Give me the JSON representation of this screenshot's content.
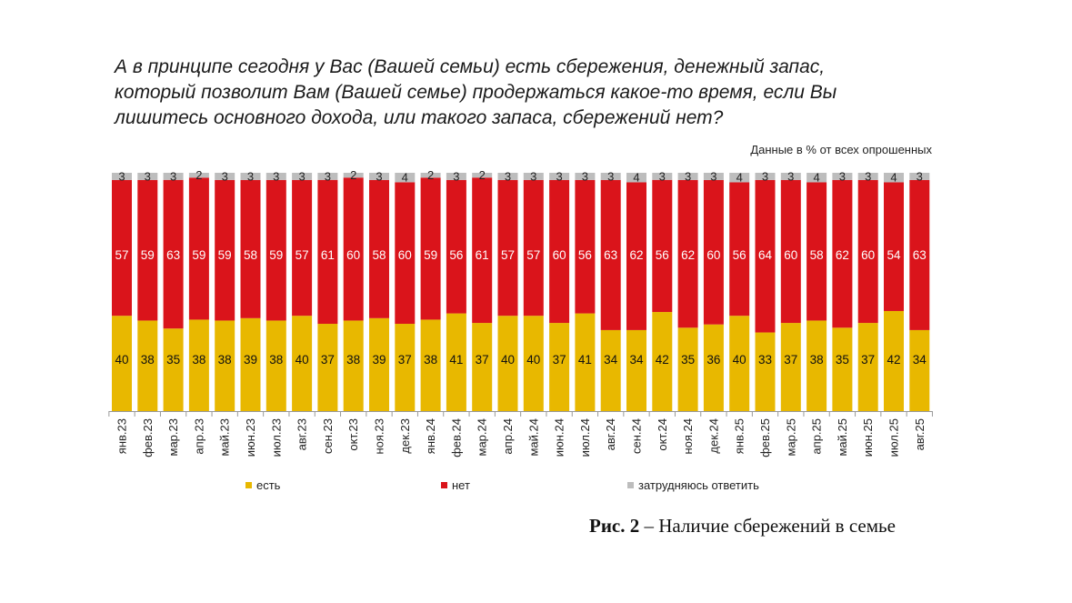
{
  "title_lines": [
    "А в принципе сегодня у Вас (Вашей семьи) есть сбережения, денежный запас,",
    "который позволит Вам (Вашей семье) продержаться какое-то время, если Вы",
    "лишитесь основного дохода, или такого запаса, сбережений нет?"
  ],
  "subtitle": "Данные в % от всех опрошенных",
  "caption": {
    "label": "Рис. 2",
    "text": " – Наличие сбережений в семье"
  },
  "chart_data": {
    "type": "bar",
    "stacked": true,
    "normalized_percent": true,
    "categories": [
      "янв.23",
      "фев.23",
      "мар.23",
      "апр.23",
      "май.23",
      "июн.23",
      "июл.23",
      "авг.23",
      "сен.23",
      "окт.23",
      "ноя.23",
      "дек.23",
      "янв.24",
      "фев.24",
      "мар.24",
      "апр.24",
      "май.24",
      "июн.24",
      "июл.24",
      "авг.24",
      "сен.24",
      "окт.24",
      "ноя.24",
      "дек.24",
      "янв.25",
      "фев.25",
      "мар.25",
      "апр.25",
      "май.25",
      "июн.25",
      "июл.25",
      "авг.25"
    ],
    "series": [
      {
        "name": "есть",
        "color": "#E8B800",
        "values": [
          40,
          38,
          35,
          38,
          38,
          39,
          38,
          40,
          37,
          38,
          39,
          37,
          38,
          41,
          37,
          40,
          40,
          37,
          41,
          34,
          34,
          42,
          35,
          36,
          40,
          33,
          37,
          38,
          35,
          37,
          42,
          34
        ]
      },
      {
        "name": "нет",
        "color": "#DA141B",
        "values": [
          57,
          59,
          63,
          59,
          59,
          58,
          59,
          57,
          61,
          60,
          58,
          60,
          59,
          56,
          61,
          57,
          57,
          60,
          56,
          63,
          62,
          56,
          62,
          60,
          56,
          64,
          60,
          58,
          62,
          60,
          54,
          63
        ]
      },
      {
        "name": "затрудняюсь ответить",
        "color": "#BDBDBD",
        "values": [
          3,
          3,
          3,
          2,
          3,
          3,
          3,
          3,
          3,
          2,
          3,
          4,
          2,
          3,
          2,
          3,
          3,
          3,
          3,
          3,
          4,
          3,
          3,
          3,
          4,
          3,
          3,
          4,
          3,
          3,
          4,
          3
        ]
      }
    ],
    "legend_position": "bottom",
    "grid": false,
    "xlabel": "",
    "ylabel": ""
  }
}
